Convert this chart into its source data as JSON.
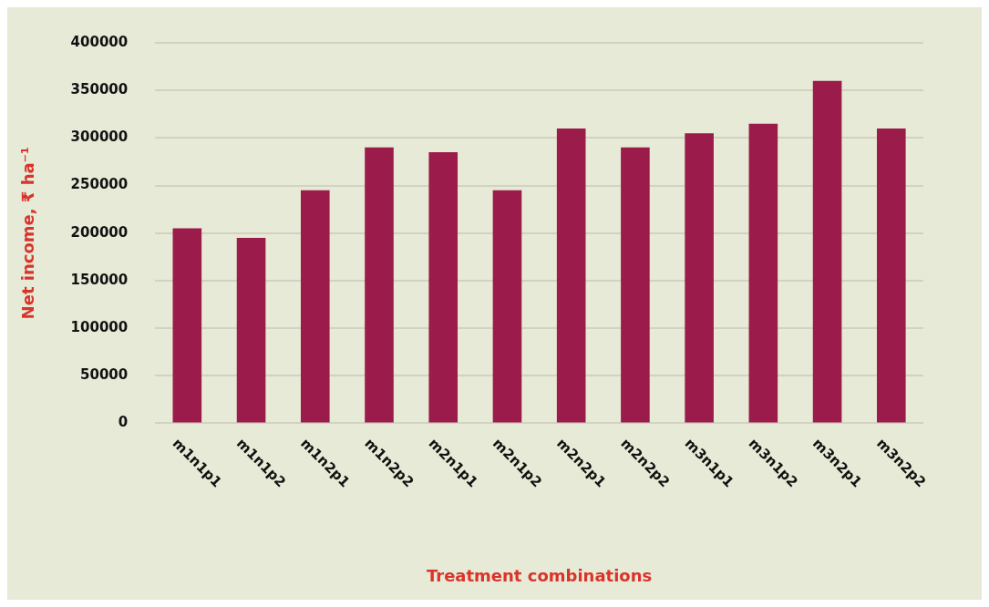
{
  "chart_data": {
    "type": "bar",
    "xlabel": "Treatment combinations",
    "ylabel": "Net income, ₹ ha⁻¹",
    "categories": [
      "m1n1p1",
      "m1n1p2",
      "m1n2p1",
      "m1n2p2",
      "m2n1p1",
      "m2n1p2",
      "m2n2p1",
      "m2n2p2",
      "m3n1p1",
      "m3n1p2",
      "m3n2p1",
      "m3n2p2"
    ],
    "values": [
      205000,
      195000,
      245000,
      290000,
      285000,
      245000,
      310000,
      290000,
      305000,
      315000,
      360000,
      310000
    ],
    "color": "#9b1b4a",
    "ylim": [
      0,
      400000
    ],
    "yticks": [
      0,
      50000,
      100000,
      150000,
      200000,
      250000,
      300000,
      350000,
      400000
    ],
    "grid": "y",
    "legend": false
  }
}
